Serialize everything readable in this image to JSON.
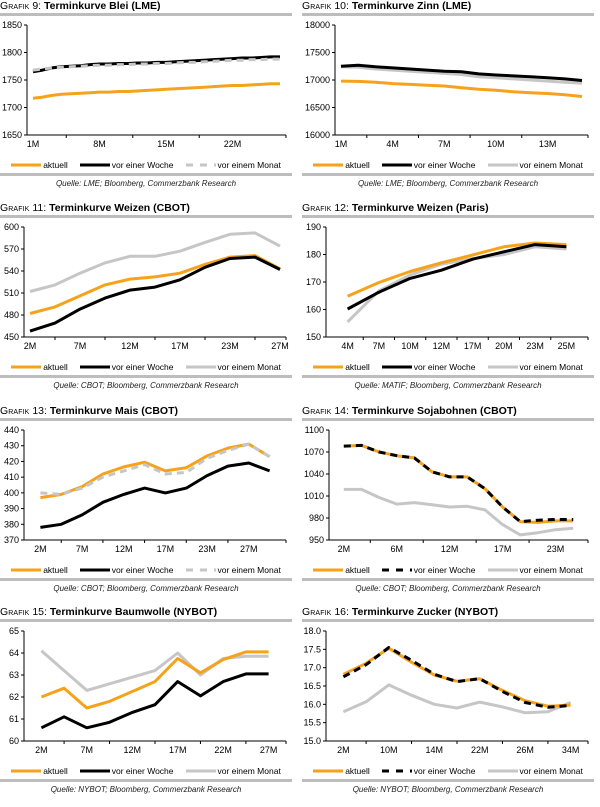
{
  "legend_labels": [
    "aktuell",
    "vor einer Woche",
    "vor einem Monat"
  ],
  "colors": {
    "aktuell": "#f7a21b",
    "vor_einer_woche": "#000000",
    "vor_einem_monat": "#c6c6c6"
  },
  "chart_data": [
    {
      "id": "g9",
      "type": "line",
      "title_prefix": "Grafik",
      "number": "9:",
      "title": "Terminkurve Blei (LME)",
      "source": "Quelle: LME; Bloomberg, Commerzbank Research",
      "xlabel": "",
      "ylabel": "",
      "ylim": [
        1650,
        1850
      ],
      "yticks": [
        "1650",
        "1700",
        "1750",
        "1800",
        "1850"
      ],
      "x": [
        1,
        2,
        3,
        4,
        5,
        6,
        7,
        8,
        9,
        10,
        11,
        12,
        13,
        14,
        15,
        16,
        17,
        18,
        19,
        20,
        21,
        22,
        23,
        24,
        25,
        26,
        27
      ],
      "xlim": [
        1,
        27
      ],
      "xtick_positions": [
        1,
        8,
        15,
        22
      ],
      "xtick_labels": [
        "1M",
        "8M",
        "15M",
        "22M"
      ],
      "xtick_minor": [
        1,
        8,
        15,
        22
      ],
      "series": [
        {
          "name": "aktuell",
          "style": "solid",
          "values": [
            1717,
            1719,
            1722,
            1724,
            1725,
            1726,
            1727,
            1728,
            1728,
            1729,
            1729,
            1730,
            1731,
            1732,
            1733,
            1734,
            1735,
            1736,
            1737,
            1738,
            1739,
            1740,
            1740,
            1741,
            1742,
            1743,
            1743
          ]
        },
        {
          "name": "vor einer Woche",
          "style": "solid",
          "values": [
            1765,
            1768,
            1772,
            1774,
            1775,
            1776,
            1778,
            1779,
            1779,
            1780,
            1780,
            1781,
            1781,
            1782,
            1782,
            1783,
            1784,
            1785,
            1786,
            1787,
            1788,
            1789,
            1790,
            1790,
            1791,
            1792,
            1792
          ]
        },
        {
          "name": "vor einem Monat",
          "style": "dashed",
          "values": [
            1768,
            1770,
            1772,
            1773,
            1774,
            1775,
            1776,
            1777,
            1777,
            1778,
            1778,
            1779,
            1779,
            1780,
            1780,
            1781,
            1782,
            1782,
            1783,
            1784,
            1785,
            1786,
            1786,
            1787,
            1787,
            1788,
            1788
          ]
        }
      ],
      "legend_styles": [
        "solid",
        "solid",
        "dashed"
      ]
    },
    {
      "id": "g10",
      "type": "line",
      "title_prefix": "Grafik",
      "number": "10:",
      "title": "Terminkurve Zinn (LME)",
      "source": "Quelle: LME; Bloomberg, Commerzbank Research",
      "xlabel": "",
      "ylabel": "",
      "ylim": [
        16000,
        18000
      ],
      "yticks": [
        "16000",
        "16500",
        "17000",
        "17500",
        "18000"
      ],
      "x": [
        1,
        2,
        3,
        4,
        5,
        6,
        7,
        8,
        9,
        10,
        11,
        12,
        13,
        14,
        15
      ],
      "xlim": [
        1,
        15
      ],
      "xtick_positions": [
        1,
        4,
        7,
        10,
        13
      ],
      "xtick_labels": [
        "1M",
        "4M",
        "7M",
        "10M",
        "13M"
      ],
      "series": [
        {
          "name": "aktuell",
          "style": "solid",
          "values": [
            16980,
            16975,
            16960,
            16935,
            16920,
            16905,
            16890,
            16860,
            16830,
            16815,
            16785,
            16770,
            16755,
            16730,
            16700
          ]
        },
        {
          "name": "vor einer Woche",
          "style": "solid",
          "values": [
            17250,
            17270,
            17240,
            17220,
            17200,
            17180,
            17160,
            17150,
            17110,
            17090,
            17075,
            17060,
            17040,
            17020,
            16990
          ]
        },
        {
          "name": "vor einem Monat",
          "style": "solid",
          "values": [
            17240,
            17230,
            17200,
            17180,
            17160,
            17140,
            17120,
            17100,
            17060,
            17040,
            17020,
            17000,
            16980,
            16960,
            16940
          ]
        }
      ],
      "legend_styles": [
        "solid",
        "solid",
        "solid"
      ]
    },
    {
      "id": "g11",
      "type": "line",
      "title_prefix": "Grafik",
      "number": "11:",
      "title": "Terminkurve Weizen (CBOT)",
      "source": "Quelle: CBOT; Bloomberg, Commerzbank Research",
      "xlabel": "",
      "ylabel": "",
      "ylim": [
        450,
        600
      ],
      "yticks": [
        "450",
        "480",
        "510",
        "540",
        "570",
        "600"
      ],
      "x": [
        0,
        1,
        2,
        3,
        4,
        5,
        6,
        7,
        8,
        9,
        10
      ],
      "xlim": [
        0,
        10
      ],
      "xtick_positions": [
        0,
        2,
        4,
        6,
        8,
        10
      ],
      "xtick_labels": [
        "2M",
        "7M",
        "12M",
        "17M",
        "23M",
        "27M"
      ],
      "series": [
        {
          "name": "aktuell",
          "style": "solid",
          "values": [
            482,
            491,
            506,
            521,
            529,
            532,
            537,
            549,
            559,
            561,
            543
          ]
        },
        {
          "name": "vor einer Woche",
          "style": "solid",
          "values": [
            458,
            469,
            488,
            503,
            514,
            518,
            528,
            545,
            557,
            559,
            542
          ]
        },
        {
          "name": "vor einem Monat",
          "style": "solid",
          "values": [
            512,
            521,
            537,
            551,
            560,
            560,
            567,
            579,
            590,
            592,
            574
          ]
        }
      ],
      "legend_styles": [
        "solid",
        "solid",
        "solid"
      ]
    },
    {
      "id": "g12",
      "type": "line",
      "title_prefix": "Grafik",
      "number": "12:",
      "title": "Terminkurve Weizen (Paris)",
      "source": "Quelle: MATIF; Bloomberg, Commerzbank Research",
      "xlabel": "",
      "ylabel": "",
      "ylim": [
        150,
        190
      ],
      "yticks": [
        "150",
        "160",
        "170",
        "180",
        "190"
      ],
      "x": [
        0,
        1,
        2,
        3,
        4,
        5,
        6,
        7
      ],
      "xlim": [
        -0.5,
        7.5
      ],
      "xtick_positions": [
        0,
        1,
        2,
        3,
        4,
        5,
        6,
        7
      ],
      "xtick_labels": [
        "4M",
        "7M",
        "10M",
        "12M",
        "17M",
        "20M",
        "23M",
        "25M"
      ],
      "series": [
        {
          "name": "aktuell",
          "style": "solid",
          "values": [
            164.8,
            169.8,
            173.8,
            177,
            179.8,
            182.8,
            184.2,
            183.6
          ]
        },
        {
          "name": "vor einer Woche",
          "style": "solid",
          "values": [
            160.2,
            166.3,
            171.3,
            174.3,
            178.3,
            181,
            183.6,
            182.8
          ]
        },
        {
          "name": "vor einem Monat",
          "style": "solid",
          "values": [
            155.5,
            166.8,
            172.5,
            176.5,
            178.5,
            180,
            182.8,
            182
          ]
        }
      ],
      "legend_styles": [
        "solid",
        "solid",
        "solid"
      ]
    },
    {
      "id": "g13",
      "type": "line",
      "title_prefix": "Grafik",
      "number": "13:",
      "title": "Terminkurve Mais (CBOT)",
      "source": "Quelle: CBOT; Bloomberg, Commerzbank Research",
      "xlabel": "",
      "ylabel": "",
      "ylim": [
        370,
        440
      ],
      "yticks": [
        "370",
        "380",
        "390",
        "400",
        "410",
        "420",
        "430",
        "440"
      ],
      "x": [
        0,
        1,
        2,
        3,
        4,
        5,
        6,
        7,
        8,
        9,
        10,
        11
      ],
      "xlim": [
        -0.5,
        11.5
      ],
      "xtick_positions": [
        0,
        2,
        4,
        6,
        8,
        10
      ],
      "xtick_labels": [
        "2M",
        "7M",
        "12M",
        "17M",
        "23M",
        "27M"
      ],
      "series": [
        {
          "name": "aktuell",
          "style": "solid",
          "values": [
            397,
            399,
            404,
            412,
            416.5,
            419.5,
            414,
            416,
            423.5,
            428.5,
            431,
            423
          ]
        },
        {
          "name": "vor einer Woche",
          "style": "solid",
          "values": [
            378,
            380,
            386,
            394,
            399,
            403,
            400,
            403,
            411,
            417,
            419,
            414
          ]
        },
        {
          "name": "vor einem Monat",
          "style": "dashed",
          "values": [
            400,
            399,
            403,
            410,
            414,
            418,
            412,
            413,
            422,
            427,
            431,
            423
          ]
        }
      ],
      "legend_styles": [
        "solid",
        "solid",
        "dashed"
      ]
    },
    {
      "id": "g14",
      "type": "line",
      "title_prefix": "Grafik",
      "number": "14:",
      "title": "Terminkurve Sojabohnen (CBOT)",
      "source": "Quelle: CBOT; Bloomberg, Commerzbank Research",
      "xlabel": "",
      "ylabel": "",
      "ylim": [
        950,
        1100
      ],
      "yticks": [
        "950",
        "980",
        "1010",
        "1040",
        "1070",
        "1100"
      ],
      "x": [
        0,
        1,
        2,
        3,
        4,
        5,
        6,
        7,
        8,
        9,
        10,
        11,
        12,
        13
      ],
      "xlim": [
        -0.5,
        13.5
      ],
      "xtick_positions": [
        0,
        3,
        6,
        9,
        12
      ],
      "xtick_labels": [
        "2M",
        "6M",
        "12M",
        "17M",
        "23M"
      ],
      "series": [
        {
          "name": "aktuell",
          "style": "solid",
          "values": [
            1078,
            1079,
            1070,
            1065,
            1062,
            1043,
            1036,
            1036,
            1020,
            995,
            975,
            974,
            976,
            976
          ]
        },
        {
          "name": "vor einer Woche",
          "style": "dashed",
          "values": [
            1078,
            1079,
            1070,
            1065,
            1062,
            1043,
            1036,
            1036,
            1020,
            995,
            975,
            977,
            978,
            978
          ]
        },
        {
          "name": "vor einem Monat",
          "style": "solid",
          "values": [
            1019,
            1019,
            1008,
            999,
            1001,
            998,
            995,
            996,
            991,
            971,
            957,
            960,
            964,
            966
          ]
        }
      ],
      "legend_styles": [
        "solid",
        "dashed",
        "solid"
      ]
    },
    {
      "id": "g15",
      "type": "line",
      "title_prefix": "Grafik",
      "number": "15:",
      "title": "Terminkurve Baumwolle (NYBOT)",
      "source": "Quelle: NYBOT; Bloomberg, Commerzbank Research",
      "xlabel": "",
      "ylabel": "",
      "ylim": [
        60,
        65
      ],
      "yticks": [
        "60",
        "61",
        "62",
        "63",
        "64",
        "65"
      ],
      "x": [
        0,
        1,
        2,
        3,
        4,
        5,
        6,
        7,
        8,
        9,
        10
      ],
      "xlim": [
        -0.5,
        10.5
      ],
      "xtick_positions": [
        0,
        2,
        4,
        6,
        8,
        10
      ],
      "xtick_labels": [
        "2M",
        "7M",
        "12M",
        "17M",
        "22M",
        "27M"
      ],
      "series": [
        {
          "name": "aktuell",
          "style": "solid",
          "values": [
            62.0,
            62.4,
            61.5,
            61.8,
            62.25,
            62.7,
            63.75,
            63.1,
            63.7,
            64.05,
            64.05
          ]
        },
        {
          "name": "vor einer Woche",
          "style": "solid",
          "values": [
            60.6,
            61.1,
            60.6,
            60.85,
            61.3,
            61.65,
            62.7,
            62.05,
            62.7,
            63.05,
            63.05
          ]
        },
        {
          "name": "vor einem Monat",
          "style": "solid",
          "values": [
            64.1,
            63.2,
            62.3,
            62.6,
            62.9,
            63.2,
            64.0,
            63.0,
            63.75,
            63.85,
            63.85
          ]
        }
      ],
      "legend_styles": [
        "solid",
        "solid",
        "solid"
      ]
    },
    {
      "id": "g16",
      "type": "line",
      "title_prefix": "Grafik",
      "number": "16:",
      "title": "Terminkurve Zucker (NYBOT)",
      "source": "Quelle: NYBOT; Bloomberg, Commerzbank Research",
      "xlabel": "",
      "ylabel": "",
      "ylim": [
        15.0,
        18.0
      ],
      "yticks": [
        "15.0",
        "15.5",
        "16.0",
        "16.5",
        "17.0",
        "17.5",
        "18.0"
      ],
      "x": [
        0,
        1,
        2,
        3,
        4,
        5,
        6,
        7,
        8,
        9,
        10
      ],
      "xlim": [
        -0.5,
        10.5
      ],
      "xtick_positions": [
        0,
        2,
        4,
        6,
        8,
        10
      ],
      "xtick_labels": [
        "2M",
        "10M",
        "14M",
        "22M",
        "26M",
        "34M"
      ],
      "series": [
        {
          "name": "aktuell",
          "style": "solid",
          "values": [
            16.82,
            17.12,
            17.53,
            17.15,
            16.8,
            16.63,
            16.7,
            16.38,
            16.1,
            15.95,
            15.98
          ]
        },
        {
          "name": "vor einer Woche",
          "style": "dashed",
          "values": [
            16.75,
            17.08,
            17.55,
            17.2,
            16.82,
            16.62,
            16.7,
            16.35,
            16.05,
            15.92,
            15.97
          ]
        },
        {
          "name": "vor einem Monat",
          "style": "solid",
          "values": [
            15.8,
            16.07,
            16.53,
            16.25,
            16.0,
            15.9,
            16.06,
            15.93,
            15.77,
            15.8,
            16.05
          ]
        }
      ],
      "legend_styles": [
        "solid",
        "dashed",
        "solid"
      ]
    }
  ]
}
